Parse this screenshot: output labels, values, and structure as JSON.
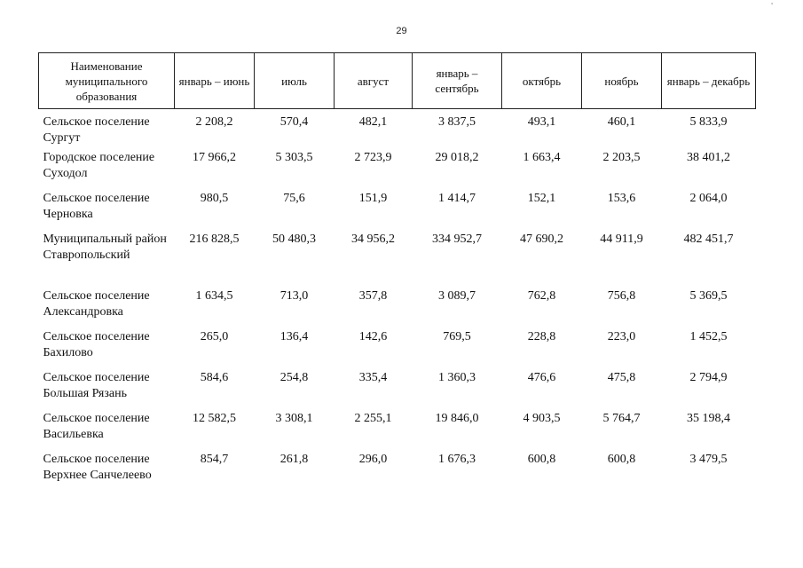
{
  "page_number": "29",
  "corner_mark": "'",
  "table": {
    "columns": [
      "Наименование муниципального образования",
      "январь – июнь",
      "июль",
      "август",
      "январь – сентябрь",
      "октябрь",
      "ноябрь",
      "январь – декабрь"
    ],
    "rows": [
      {
        "name": "Сельское поселение Сургут",
        "values": [
          "2 208,2",
          "570,4",
          "482,1",
          "3 837,5",
          "493,1",
          "460,1",
          "5 833,9"
        ]
      },
      {
        "name": "Городское поселение Суходол",
        "values": [
          "17 966,2",
          "5 303,5",
          "2 723,9",
          "29 018,2",
          "1 663,4",
          "2 203,5",
          "38 401,2"
        ]
      },
      {
        "name": "Сельское поселение Черновка",
        "values": [
          "980,5",
          "75,6",
          "151,9",
          "1 414,7",
          "152,1",
          "153,6",
          "2 064,0"
        ]
      },
      {
        "name": "Муниципальный район Ставропольский",
        "values": [
          "216 828,5",
          "50 480,3",
          "34 956,2",
          "334 952,7",
          "47 690,2",
          "44 911,9",
          "482 451,7"
        ]
      },
      {
        "name": "Сельское поселение Александровка",
        "values": [
          "1 634,5",
          "713,0",
          "357,8",
          "3 089,7",
          "762,8",
          "756,8",
          "5 369,5"
        ]
      },
      {
        "name": "Сельское поселение Бахилово",
        "values": [
          "265,0",
          "136,4",
          "142,6",
          "769,5",
          "228,8",
          "223,0",
          "1 452,5"
        ]
      },
      {
        "name": "Сельское поселение Большая Рязань",
        "values": [
          "584,6",
          "254,8",
          "335,4",
          "1 360,3",
          "476,6",
          "475,8",
          "2 794,9"
        ]
      },
      {
        "name": "Сельское поселение Васильевка",
        "values": [
          "12 582,5",
          "3 308,1",
          "2 255,1",
          "19 846,0",
          "4 903,5",
          "5 764,7",
          "35 198,4"
        ]
      },
      {
        "name": "Сельское поселение Верхнее Санчелеево",
        "values": [
          "854,7",
          "261,8",
          "296,0",
          "1 676,3",
          "600,8",
          "600,8",
          "3 479,5"
        ]
      }
    ]
  }
}
